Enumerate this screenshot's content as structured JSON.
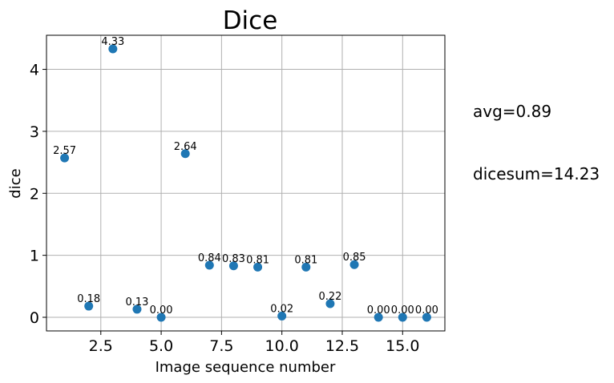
{
  "chart_data": {
    "type": "scatter",
    "title": "Dice",
    "xlabel": "Image sequence number",
    "ylabel": "dice",
    "xlim": [
      0.25,
      16.75
    ],
    "ylim": [
      -0.22,
      4.55
    ],
    "xticks": [
      2.5,
      5.0,
      7.5,
      10.0,
      12.5,
      15.0
    ],
    "xtick_labels": [
      "2.5",
      "5.0",
      "7.5",
      "10.0",
      "12.5",
      "15.0"
    ],
    "yticks": [
      0,
      1,
      2,
      3,
      4
    ],
    "ytick_labels": [
      "0",
      "1",
      "2",
      "3",
      "4"
    ],
    "grid": true,
    "marker_color": "#1f77b4",
    "points": [
      {
        "x": 1,
        "y": 2.57,
        "label": "2.57"
      },
      {
        "x": 2,
        "y": 0.18,
        "label": "0.18"
      },
      {
        "x": 3,
        "y": 4.33,
        "label": "4.33"
      },
      {
        "x": 4,
        "y": 0.13,
        "label": "0.13"
      },
      {
        "x": 5,
        "y": 0.0,
        "label": "0.00"
      },
      {
        "x": 6,
        "y": 2.64,
        "label": "2.64"
      },
      {
        "x": 7,
        "y": 0.84,
        "label": "0.84"
      },
      {
        "x": 8,
        "y": 0.83,
        "label": "0.83"
      },
      {
        "x": 9,
        "y": 0.81,
        "label": "0.81"
      },
      {
        "x": 10,
        "y": 0.02,
        "label": "0.02"
      },
      {
        "x": 11,
        "y": 0.81,
        "label": "0.81"
      },
      {
        "x": 12,
        "y": 0.22,
        "label": "0.22"
      },
      {
        "x": 13,
        "y": 0.85,
        "label": "0.85"
      },
      {
        "x": 14,
        "y": 0.0,
        "label": "0.00"
      },
      {
        "x": 15,
        "y": 0.0,
        "label": "0.00"
      },
      {
        "x": 16,
        "y": 0.0,
        "label": "0.00"
      }
    ]
  },
  "annotations": {
    "avg": "avg=0.89",
    "dicesum": "dicesum=14.23"
  }
}
